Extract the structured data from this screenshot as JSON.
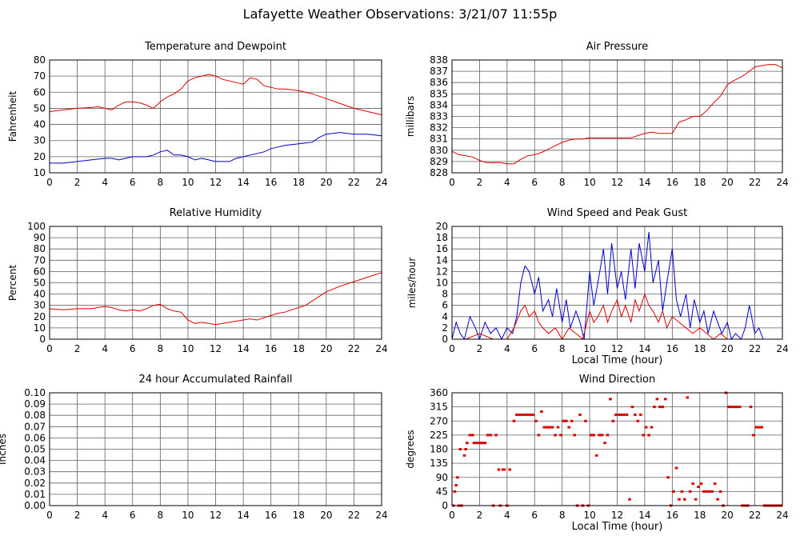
{
  "page": {
    "title": "Lafayette Weather Observations: 3/21/07 11:55p"
  },
  "colors": {
    "red": "#dd0000",
    "blue": "#0000cc",
    "grid": "#606060",
    "frame": "#000000"
  },
  "chart_data": [
    {
      "id": "temperature",
      "type": "line",
      "title": "Temperature and Dewpoint",
      "xlabel": "",
      "ylabel": "Fahrenheit",
      "xlim": [
        0,
        24
      ],
      "ylim": [
        10,
        80
      ],
      "xticks": [
        "0",
        "2",
        "4",
        "6",
        "8",
        "10",
        "12",
        "14",
        "16",
        "18",
        "20",
        "22",
        "24"
      ],
      "yticks": [
        "10",
        "20",
        "30",
        "40",
        "50",
        "60",
        "70",
        "80"
      ],
      "grid": true,
      "series": [
        {
          "color": "red",
          "x": [
            0,
            1,
            2,
            3,
            3.5,
            4,
            4.5,
            5,
            5.5,
            6,
            6.5,
            7,
            7.5,
            8,
            8.5,
            9,
            9.5,
            10,
            10.5,
            11,
            11.5,
            12,
            12.5,
            13,
            13.5,
            14,
            14.5,
            15,
            15.5,
            16,
            16.5,
            17,
            18,
            19,
            20,
            21,
            22,
            23,
            24
          ],
          "y": [
            48,
            49,
            50,
            50.5,
            51,
            50,
            49,
            52,
            54,
            54,
            53.5,
            52,
            50,
            54,
            57,
            59,
            62,
            67,
            69,
            70,
            71,
            70,
            68,
            67,
            66,
            65,
            69,
            68,
            64,
            63,
            62,
            62,
            61,
            59,
            56,
            53,
            50,
            48,
            46
          ]
        },
        {
          "color": "blue",
          "x": [
            0,
            1,
            2,
            3,
            4,
            4.5,
            5,
            5.5,
            6,
            6.5,
            7,
            7.5,
            8,
            8.5,
            9,
            9.5,
            10,
            10.5,
            11,
            11.5,
            12,
            12.5,
            13,
            13.5,
            14,
            14.5,
            15,
            15.5,
            16,
            16.5,
            17,
            18,
            19,
            19.5,
            20,
            21,
            22,
            23,
            24
          ],
          "y": [
            16,
            16,
            17,
            18,
            19,
            19,
            18,
            19,
            20,
            20,
            20,
            21,
            23,
            24,
            21,
            21,
            20,
            18,
            19,
            18,
            17,
            17,
            17,
            19,
            20,
            21,
            22,
            23,
            25,
            26,
            27,
            28,
            29,
            32,
            34,
            35,
            34,
            34,
            33
          ]
        }
      ]
    },
    {
      "id": "pressure",
      "type": "line",
      "title": "Air Pressure",
      "xlabel": "",
      "ylabel": "millibars",
      "xlim": [
        0,
        24
      ],
      "ylim": [
        828,
        838
      ],
      "xticks": [
        "0",
        "2",
        "4",
        "6",
        "8",
        "10",
        "12",
        "14",
        "16",
        "18",
        "20",
        "22",
        "24"
      ],
      "yticks": [
        "828",
        "829",
        "830",
        "831",
        "832",
        "833",
        "834",
        "835",
        "836",
        "837",
        "838"
      ],
      "grid": true,
      "series": [
        {
          "color": "red",
          "x": [
            0,
            0.5,
            1,
            1.5,
            2,
            2.5,
            3,
            3.5,
            4,
            4.5,
            5,
            5.5,
            6,
            6.5,
            7,
            7.5,
            8,
            8.5,
            9,
            9.5,
            10,
            11,
            12,
            13,
            13.5,
            14,
            14.5,
            15,
            15.5,
            16,
            16.5,
            17,
            17.5,
            18,
            18.5,
            19,
            19.5,
            20,
            20.5,
            21,
            21.5,
            22,
            23,
            23.5,
            24
          ],
          "y": [
            829.9,
            829.6,
            829.5,
            829.4,
            829.1,
            828.9,
            828.9,
            828.9,
            828.8,
            828.8,
            829.2,
            829.5,
            829.6,
            829.8,
            830.1,
            830.4,
            830.7,
            830.9,
            831,
            831,
            831.1,
            831.1,
            831.1,
            831.1,
            831.3,
            831.5,
            831.6,
            831.5,
            831.5,
            831.5,
            832.5,
            832.7,
            833,
            833,
            833.5,
            834.2,
            834.8,
            835.8,
            836.2,
            836.5,
            836.9,
            837.4,
            837.6,
            837.6,
            837.3
          ]
        }
      ]
    },
    {
      "id": "humidity",
      "type": "line",
      "title": "Relative Humidity",
      "xlabel": "",
      "ylabel": "Percent",
      "xlim": [
        0,
        24
      ],
      "ylim": [
        0,
        100
      ],
      "xticks": [
        "0",
        "2",
        "4",
        "6",
        "8",
        "10",
        "12",
        "14",
        "16",
        "18",
        "20",
        "22",
        "24"
      ],
      "yticks": [
        "0",
        "10",
        "20",
        "30",
        "40",
        "50",
        "60",
        "70",
        "80",
        "90",
        "100"
      ],
      "grid": true,
      "series": [
        {
          "color": "red",
          "x": [
            0,
            1,
            2,
            3,
            4,
            4.5,
            5,
            5.5,
            6,
            6.5,
            7,
            7.5,
            8,
            8.5,
            9,
            9.5,
            10,
            10.5,
            11,
            11.5,
            12,
            12.5,
            13,
            13.5,
            14,
            14.5,
            15,
            15.5,
            16,
            16.5,
            17,
            17.5,
            18,
            18.5,
            19,
            19.5,
            20,
            21,
            22,
            23,
            24
          ],
          "y": [
            27,
            26,
            27,
            27,
            29,
            28,
            26,
            25,
            26,
            25,
            27,
            30,
            31,
            27,
            25,
            24,
            17,
            14,
            15,
            14,
            13,
            14,
            15,
            16,
            17,
            18,
            17,
            19,
            21,
            23,
            24,
            26,
            28,
            30,
            34,
            38,
            42,
            47,
            51,
            55,
            59
          ]
        }
      ]
    },
    {
      "id": "wind_speed",
      "type": "line",
      "title": "Wind Speed and Peak Gust",
      "xlabel": "Local Time (hour)",
      "ylabel": "miles/hour",
      "xlim": [
        0,
        24
      ],
      "ylim": [
        0,
        20
      ],
      "xticks": [
        "0",
        "2",
        "4",
        "6",
        "8",
        "10",
        "12",
        "14",
        "16",
        "18",
        "20",
        "22",
        "24"
      ],
      "yticks": [
        "0",
        "2",
        "4",
        "6",
        "8",
        "10",
        "12",
        "14",
        "16",
        "18",
        "20"
      ],
      "grid": true,
      "series": [
        {
          "color": "blue",
          "x": [
            0,
            0.3,
            0.6,
            0.9,
            1.3,
            1.7,
            2,
            2.4,
            2.8,
            3.2,
            3.6,
            4,
            4.4,
            4.7,
            5,
            5.3,
            5.6,
            6,
            6.3,
            6.6,
            7,
            7.3,
            7.6,
            8,
            8.3,
            8.6,
            9,
            9.3,
            9.6,
            10,
            10.3,
            10.6,
            11,
            11.3,
            11.6,
            12,
            12.3,
            12.6,
            13,
            13.3,
            13.6,
            14,
            14.3,
            14.6,
            15,
            15.3,
            15.6,
            16,
            16.3,
            16.6,
            17,
            17.3,
            17.6,
            18,
            18.3,
            18.6,
            19,
            19.3,
            19.6,
            20,
            20.3,
            20.6,
            21,
            21.3,
            21.6,
            22,
            22.3,
            22.6
          ],
          "y": [
            0,
            3,
            1,
            0,
            4,
            2,
            0,
            3,
            1,
            2,
            0,
            2,
            1,
            4,
            10,
            13,
            12,
            8,
            11,
            5,
            7,
            4,
            9,
            3,
            7,
            2,
            5,
            3,
            0,
            12,
            6,
            10,
            16,
            8,
            17,
            9,
            12,
            7,
            16,
            9,
            17,
            12,
            19,
            10,
            14,
            5,
            10,
            16,
            7,
            4,
            8,
            2,
            7,
            3,
            5,
            1,
            5,
            3,
            1,
            3,
            0,
            1,
            0,
            2,
            6,
            1,
            2,
            0
          ]
        },
        {
          "color": "red",
          "x": [
            0,
            1,
            2,
            3,
            4,
            4.5,
            5,
            5.3,
            5.6,
            6,
            6.3,
            6.6,
            7,
            7.5,
            8,
            8.5,
            9,
            9.5,
            10,
            10.3,
            10.6,
            11,
            11.3,
            11.6,
            12,
            12.3,
            12.6,
            13,
            13.3,
            13.6,
            14,
            14.3,
            14.6,
            15,
            15.3,
            15.6,
            16,
            16.5,
            17,
            17.5,
            18,
            18.5,
            19,
            19.5,
            20,
            21,
            22,
            22.5
          ],
          "y": [
            0,
            0,
            1,
            0,
            0,
            2,
            5,
            6,
            4,
            5,
            3,
            2,
            1,
            2,
            0,
            2,
            1,
            0,
            5,
            3,
            4,
            6,
            3,
            5,
            7,
            4,
            6,
            3,
            7,
            5,
            8,
            6,
            5,
            3,
            5,
            2,
            4,
            3,
            2,
            1,
            2,
            1,
            0,
            1,
            0,
            0,
            0,
            0
          ]
        }
      ]
    },
    {
      "id": "rainfall",
      "type": "line",
      "title": "24 hour Accumulated Rainfall",
      "xlabel": "",
      "ylabel": "Inches",
      "xlim": [
        0,
        24
      ],
      "ylim": [
        0,
        0.1
      ],
      "xticks": [
        "0",
        "2",
        "4",
        "6",
        "8",
        "10",
        "12",
        "14",
        "16",
        "18",
        "20",
        "22",
        "24"
      ],
      "yticks": [
        "0.00",
        "0.01",
        "0.02",
        "0.03",
        "0.04",
        "0.05",
        "0.06",
        "0.07",
        "0.08",
        "0.09",
        "0.10"
      ],
      "grid": true,
      "series": [
        {
          "color": "red",
          "x": [
            0,
            24
          ],
          "y": [
            0,
            0
          ]
        }
      ]
    },
    {
      "id": "wind_direction",
      "type": "scatter",
      "title": "Wind Direction",
      "xlabel": "Local Time (hour)",
      "ylabel": "degrees",
      "xlim": [
        0,
        24
      ],
      "ylim": [
        0,
        360
      ],
      "xticks": [
        "0",
        "2",
        "4",
        "6",
        "8",
        "10",
        "12",
        "14",
        "16",
        "18",
        "20",
        "22",
        "24"
      ],
      "yticks": [
        "0",
        "45",
        "90",
        "135",
        "180",
        "225",
        "270",
        "315",
        "360"
      ],
      "grid": true,
      "series": [
        {
          "color": "red",
          "x": [
            0.1,
            0.2,
            0.3,
            0.4,
            0.5,
            0.6,
            0.7,
            0.9,
            1.0,
            1.1,
            1.3,
            1.5,
            1.6,
            1.8,
            2.0,
            2.2,
            2.4,
            2.6,
            2.8,
            3.0,
            3.2,
            3.4,
            3.5,
            3.7,
            3.8,
            4.0,
            4.2,
            4.5,
            4.7,
            4.9,
            5.1,
            5.3,
            5.5,
            5.7,
            5.9,
            6.1,
            6.3,
            6.5,
            6.7,
            6.9,
            7.1,
            7.3,
            7.5,
            7.7,
            7.9,
            8.1,
            8.3,
            8.5,
            8.7,
            8.9,
            9.1,
            9.3,
            9.5,
            9.7,
            9.9,
            10.1,
            10.3,
            10.5,
            10.7,
            10.9,
            11.1,
            11.3,
            11.5,
            11.7,
            11.9,
            12.1,
            12.3,
            12.5,
            12.7,
            12.9,
            13.1,
            13.3,
            13.5,
            13.7,
            13.9,
            14.1,
            14.3,
            14.5,
            14.7,
            14.9,
            15.1,
            15.3,
            15.5,
            15.7,
            15.9,
            16.1,
            16.3,
            16.5,
            16.7,
            16.9,
            17.1,
            17.3,
            17.5,
            17.7,
            17.9,
            18.1,
            18.3,
            18.5,
            18.7,
            18.9,
            19.1,
            19.3,
            19.5,
            19.7,
            19.9,
            20.1,
            20.3,
            20.5,
            20.7,
            20.9,
            21.1,
            21.3,
            21.5,
            21.7,
            21.9,
            22.1,
            22.3,
            22.5,
            22.7,
            22.9,
            23.1,
            23.3,
            23.5,
            23.7,
            23.9
          ],
          "y": [
            0,
            45,
            65,
            90,
            0,
            180,
            0,
            160,
            180,
            200,
            225,
            225,
            200,
            200,
            200,
            200,
            200,
            225,
            225,
            0,
            225,
            115,
            0,
            115,
            115,
            0,
            115,
            270,
            290,
            290,
            290,
            290,
            290,
            290,
            290,
            270,
            225,
            300,
            250,
            250,
            250,
            250,
            225,
            250,
            225,
            270,
            270,
            250,
            270,
            225,
            0,
            290,
            0,
            270,
            0,
            225,
            225,
            160,
            225,
            225,
            200,
            225,
            340,
            270,
            290,
            290,
            290,
            290,
            290,
            20,
            315,
            290,
            270,
            290,
            225,
            250,
            225,
            250,
            315,
            340,
            315,
            315,
            340,
            90,
            0,
            45,
            120,
            20,
            45,
            20,
            345,
            45,
            70,
            20,
            60,
            70,
            45,
            45,
            45,
            45,
            70,
            20,
            45,
            0,
            360,
            315,
            315,
            315,
            315,
            315,
            0,
            0,
            0,
            315,
            225,
            250,
            250,
            250,
            0,
            0,
            0,
            0,
            0,
            0,
            0
          ]
        }
      ]
    }
  ]
}
